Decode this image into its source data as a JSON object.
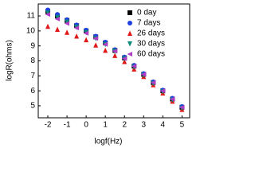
{
  "chart_data": {
    "type": "scatter",
    "xlabel": "logf(Hz)",
    "ylabel": "logR(ohms)",
    "x": [
      -2,
      -1.5,
      -1,
      -0.5,
      0,
      0.5,
      1,
      1.5,
      2,
      2.5,
      3,
      3.5,
      4,
      4.5,
      5
    ],
    "series": [
      {
        "name": "0 day",
        "color": "#000000",
        "marker": "square",
        "values": [
          11.3,
          11.0,
          10.7,
          10.35,
          10.0,
          9.6,
          9.2,
          8.7,
          8.2,
          7.65,
          7.1,
          6.55,
          6.0,
          5.45,
          4.9
        ]
      },
      {
        "name": "7 days",
        "color": "#1f3fe0",
        "marker": "circle",
        "values": [
          11.4,
          11.1,
          10.75,
          10.4,
          10.05,
          9.65,
          9.25,
          8.75,
          8.25,
          7.7,
          7.15,
          6.6,
          6.05,
          5.5,
          4.95
        ]
      },
      {
        "name": "26 days",
        "color": "#e01818",
        "marker": "triangle-up",
        "values": [
          10.3,
          10.1,
          9.9,
          9.65,
          9.4,
          9.05,
          8.7,
          8.35,
          7.95,
          7.45,
          6.95,
          6.4,
          5.85,
          5.3,
          4.75
        ]
      },
      {
        "name": "30 days",
        "color": "#0a8a7a",
        "marker": "triangle-down",
        "values": [
          11.2,
          10.9,
          10.6,
          10.25,
          9.9,
          9.5,
          9.1,
          8.65,
          8.15,
          7.6,
          7.05,
          6.5,
          5.95,
          5.4,
          4.85
        ]
      },
      {
        "name": "60 days",
        "color": "#b03cc8",
        "marker": "triangle-left",
        "values": [
          11.1,
          10.8,
          10.5,
          10.2,
          9.85,
          9.5,
          9.1,
          8.65,
          8.15,
          7.65,
          7.1,
          6.55,
          6.0,
          5.45,
          4.9
        ]
      }
    ],
    "xlim": [
      -2.5,
      5.4
    ],
    "xticks": [
      -2,
      -1,
      0,
      1,
      2,
      3,
      4,
      5
    ],
    "ylim": [
      4.2,
      11.8
    ],
    "yticks": [
      5,
      6,
      7,
      8,
      9,
      10,
      11
    ],
    "legend": "upper right"
  }
}
